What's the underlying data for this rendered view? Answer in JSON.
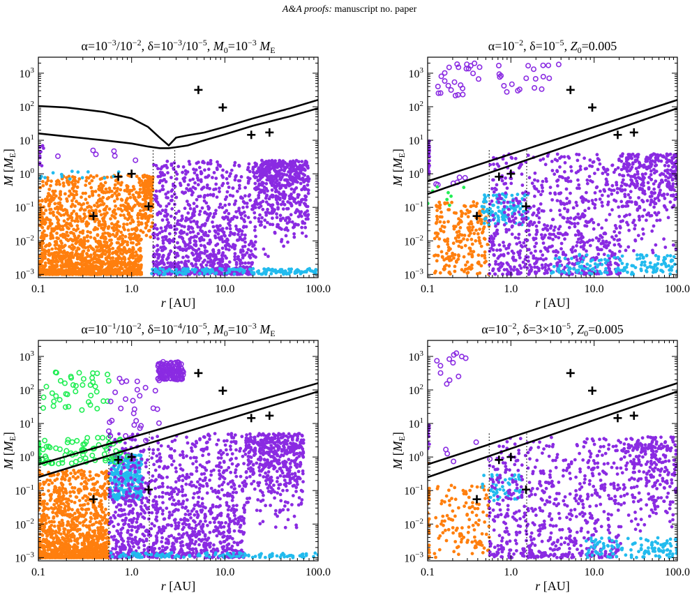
{
  "header": {
    "journal": "A&A proofs:",
    "rest": "manuscript no. paper"
  },
  "colors": {
    "orange": "#ff7f0e",
    "cyan": "#22bbee",
    "green": "#22ee55",
    "purple": "#8a2be2",
    "black": "#000000"
  },
  "chart_data": [
    {
      "type": "scatter",
      "panel": "top-left",
      "title_parts": [
        [
          "α=10",
          "n"
        ],
        [
          "−3",
          "sup"
        ],
        [
          "/10",
          "n"
        ],
        [
          "−2",
          "sup"
        ],
        [
          ", δ=10",
          "n"
        ],
        [
          "−3",
          "sup"
        ],
        [
          "/10",
          "n"
        ],
        [
          "−5",
          "sup"
        ],
        [
          ", ",
          "n"
        ],
        [
          "M",
          "i"
        ],
        [
          "0",
          "sub"
        ],
        [
          "=10",
          "n"
        ],
        [
          "−3",
          "sup"
        ],
        [
          " ",
          "n"
        ],
        [
          "M",
          "i"
        ],
        [
          "E",
          "sub"
        ]
      ],
      "xscale": "log",
      "yscale": "log",
      "xlim": [
        0.1,
        100
      ],
      "ylim": [
        0.0008,
        3000
      ],
      "xticks": [
        "0.1",
        "1.0",
        "10.0",
        "100.0"
      ],
      "yticks": [
        "10",
        "10",
        "10",
        "10",
        "10",
        "10",
        "10"
      ],
      "ytick_exponents": [
        "−3",
        "−2",
        "−1",
        "0",
        "1",
        "2",
        "3"
      ],
      "xlabel_main": "r",
      "xlabel_unit": " [AU]",
      "ylabel_main": "M",
      "ylabel_unit_base": "M",
      "ylabel_unit_sub": "E",
      "lines": [
        {
          "x": [
            0.1,
            0.2,
            0.5,
            1.0,
            1.5,
            2.0,
            2.5,
            3.0,
            4.0,
            6.0,
            10,
            20,
            50,
            100
          ],
          "y": [
            105,
            95,
            70,
            45,
            25,
            12,
            7,
            12,
            14,
            17,
            25,
            45,
            90,
            160
          ]
        },
        {
          "x": [
            0.1,
            0.2,
            0.5,
            1.0,
            1.5,
            2.0,
            2.5,
            3.0,
            4.0,
            6.0,
            10,
            20,
            50,
            100
          ],
          "y": [
            16,
            13,
            10,
            8,
            6.5,
            5.8,
            5.8,
            6.2,
            7,
            10,
            15,
            27,
            52,
            90
          ]
        }
      ],
      "dotted_x": [
        1.7,
        2.9
      ],
      "solar_system": {
        "x": [
          0.39,
          0.72,
          1.0,
          1.52,
          5.2,
          9.5,
          19.2,
          30.1
        ],
        "y": [
          0.055,
          0.82,
          1.0,
          0.107,
          318,
          95,
          14.5,
          17.1
        ]
      },
      "populations": [
        {
          "color": "orange",
          "filled": true,
          "n": 1700,
          "xr": [
            0.1,
            1.7
          ],
          "yr": [
            0.001,
            0.9
          ],
          "decay": 2.2,
          "edge": 0.1
        },
        {
          "color": "purple",
          "filled": true,
          "n": 1500,
          "xr": [
            1.7,
            80
          ],
          "yr": [
            0.001,
            2.5
          ],
          "decay": 1.8,
          "edge": 0.35
        },
        {
          "color": "cyan",
          "filled": true,
          "n": 160,
          "xr": [
            1.6,
            100
          ],
          "yr": [
            0.001,
            0.0015
          ],
          "decay": 1,
          "edge": 0
        },
        {
          "color": "purple",
          "filled": false,
          "n": 6,
          "xr": [
            0.1,
            1.6
          ],
          "yr": [
            1.0,
            5
          ],
          "decay": 0.3,
          "edge": 0
        },
        {
          "color": "purple",
          "filled": true,
          "n": 10,
          "xr": [
            0.1,
            0.12
          ],
          "yr": [
            1.0,
            10
          ],
          "decay": 1,
          "edge": 0
        },
        {
          "color": "cyan",
          "filled": true,
          "n": 14,
          "xr": [
            0.1,
            1.0
          ],
          "yr": [
            0.7,
            1.2
          ],
          "decay": 1,
          "edge": 0
        }
      ]
    },
    {
      "type": "scatter",
      "panel": "top-right",
      "title_parts": [
        [
          "α=10",
          "n"
        ],
        [
          "−2",
          "sup"
        ],
        [
          ", δ=10",
          "n"
        ],
        [
          "−5",
          "sup"
        ],
        [
          ", ",
          "n"
        ],
        [
          "Z",
          "i"
        ],
        [
          "0",
          "sub"
        ],
        [
          "=0.005",
          "n"
        ]
      ],
      "xscale": "log",
      "yscale": "log",
      "xlim": [
        0.1,
        100
      ],
      "ylim": [
        0.0008,
        3000
      ],
      "xticks": [
        "0.1",
        "1.0",
        "10.0",
        "100.0"
      ],
      "yticks": [
        "10",
        "10",
        "10",
        "10",
        "10",
        "10",
        "10"
      ],
      "ytick_exponents": [
        "−3",
        "−2",
        "−1",
        "0",
        "1",
        "2",
        "3"
      ],
      "xlabel_main": "r",
      "xlabel_unit": " [AU]",
      "ylabel_main": "M",
      "ylabel_unit_base": "M",
      "ylabel_unit_sub": "E",
      "lines": [
        {
          "x": [
            0.1,
            100
          ],
          "y": [
            0.6,
            160
          ]
        },
        {
          "x": [
            0.1,
            100
          ],
          "y": [
            0.25,
            90
          ]
        }
      ],
      "dotted_x": [
        0.55,
        1.55
      ],
      "solar_system": {
        "x": [
          0.39,
          0.72,
          1.0,
          1.52,
          5.2,
          9.5,
          19.2,
          30.1
        ],
        "y": [
          0.055,
          0.82,
          1.0,
          0.107,
          318,
          95,
          14.5,
          17.1
        ]
      },
      "populations": [
        {
          "color": "orange",
          "filled": true,
          "n": 220,
          "xr": [
            0.12,
            0.55
          ],
          "yr": [
            0.001,
            0.15
          ],
          "decay": 1,
          "edge": 0
        },
        {
          "color": "cyan",
          "filled": true,
          "n": 120,
          "xr": [
            0.45,
            1.7
          ],
          "yr": [
            0.03,
            0.25
          ],
          "decay": 1,
          "edge": 0
        },
        {
          "color": "purple",
          "filled": true,
          "n": 1100,
          "xr": [
            0.55,
            100
          ],
          "yr": [
            0.001,
            4
          ],
          "decay": 1.5,
          "edge": 0.3
        },
        {
          "color": "cyan",
          "filled": true,
          "n": 150,
          "xr": [
            3,
            100
          ],
          "yr": [
            0.001,
            0.004
          ],
          "decay": 1,
          "edge": 0
        },
        {
          "color": "purple",
          "filled": false,
          "n": 45,
          "xr": [
            0.12,
            4
          ],
          "yr": [
            200,
            2000
          ],
          "decay": 1,
          "edge": 0
        },
        {
          "color": "purple",
          "filled": true,
          "n": 30,
          "xr": [
            0.1,
            0.105
          ],
          "yr": [
            1,
            10
          ],
          "decay": 1,
          "edge": 0
        },
        {
          "color": "purple",
          "filled": false,
          "n": 6,
          "xr": [
            0.12,
            0.3
          ],
          "yr": [
            0.4,
            1
          ],
          "decay": 1,
          "edge": 0
        },
        {
          "color": "green",
          "filled": true,
          "n": 8,
          "xr": [
            0.1,
            0.3
          ],
          "yr": [
            0.1,
            0.8
          ],
          "decay": 1,
          "edge": 0
        }
      ]
    },
    {
      "type": "scatter",
      "panel": "bottom-left",
      "title_parts": [
        [
          "α=10",
          "n"
        ],
        [
          "−1",
          "sup"
        ],
        [
          "/10",
          "n"
        ],
        [
          "−2",
          "sup"
        ],
        [
          ", δ=10",
          "n"
        ],
        [
          "−4",
          "sup"
        ],
        [
          "/10",
          "n"
        ],
        [
          "−5",
          "sup"
        ],
        [
          ", ",
          "n"
        ],
        [
          "M",
          "i"
        ],
        [
          "0",
          "sub"
        ],
        [
          "=10",
          "n"
        ],
        [
          "−3",
          "sup"
        ],
        [
          " ",
          "n"
        ],
        [
          "M",
          "i"
        ],
        [
          "E",
          "sub"
        ]
      ],
      "xscale": "log",
      "yscale": "log",
      "xlim": [
        0.1,
        100
      ],
      "ylim": [
        0.0008,
        3000
      ],
      "xticks": [
        "0.1",
        "1.0",
        "10.0",
        "100.0"
      ],
      "yticks": [
        "10",
        "10",
        "10",
        "10",
        "10",
        "10",
        "10"
      ],
      "ytick_exponents": [
        "−3",
        "−2",
        "−1",
        "0",
        "1",
        "2",
        "3"
      ],
      "xlabel_main": "r",
      "xlabel_unit": " [AU]",
      "ylabel_main": "M",
      "ylabel_unit_base": "M",
      "ylabel_unit_sub": "E",
      "lines": [
        {
          "x": [
            0.1,
            100
          ],
          "y": [
            0.6,
            160
          ]
        },
        {
          "x": [
            0.1,
            100
          ],
          "y": [
            0.25,
            90
          ]
        }
      ],
      "dotted_x": [
        0.57,
        1.55
      ],
      "solar_system": {
        "x": [
          0.39,
          0.72,
          1.0,
          1.52,
          5.2,
          9.5,
          19.2,
          30.1
        ],
        "y": [
          0.055,
          0.82,
          1.0,
          0.107,
          318,
          95,
          14.5,
          17.1
        ]
      },
      "populations": [
        {
          "color": "orange",
          "filled": true,
          "n": 1200,
          "xr": [
            0.1,
            0.57
          ],
          "yr": [
            0.001,
            0.4
          ],
          "decay": 2.5,
          "edge": 0
        },
        {
          "color": "cyan",
          "filled": true,
          "n": 300,
          "xr": [
            0.57,
            1.3
          ],
          "yr": [
            0.05,
            1.2
          ],
          "decay": 1,
          "edge": 0
        },
        {
          "color": "purple",
          "filled": true,
          "n": 1600,
          "xr": [
            0.57,
            70
          ],
          "yr": [
            0.001,
            5
          ],
          "decay": 1.6,
          "edge": 0.3
        },
        {
          "color": "cyan",
          "filled": true,
          "n": 120,
          "xr": [
            0.6,
            100
          ],
          "yr": [
            0.001,
            0.0014
          ],
          "decay": 1,
          "edge": 0
        },
        {
          "color": "green",
          "filled": false,
          "n": 70,
          "xr": [
            0.1,
            0.9
          ],
          "yr": [
            0.6,
            4
          ],
          "decay": 1,
          "edge": 0
        },
        {
          "color": "green",
          "filled": false,
          "n": 40,
          "xr": [
            0.11,
            0.6
          ],
          "yr": [
            20,
            350
          ],
          "decay": 1,
          "edge": 0
        },
        {
          "color": "purple",
          "filled": false,
          "n": 120,
          "xr": [
            1.9,
            3.6
          ],
          "yr": [
            200,
            700
          ],
          "decay": 1,
          "edge": 0
        },
        {
          "color": "purple",
          "filled": false,
          "n": 30,
          "xr": [
            0.55,
            2.0
          ],
          "yr": [
            3,
            300
          ],
          "decay": 1,
          "edge": 0
        },
        {
          "color": "green",
          "filled": true,
          "n": 30,
          "xr": [
            0.1,
            0.105
          ],
          "yr": [
            0.6,
            3
          ],
          "decay": 1,
          "edge": 0
        },
        {
          "color": "orange",
          "filled": true,
          "n": 10,
          "xr": [
            0.1,
            0.105
          ],
          "yr": [
            0.05,
            0.4
          ],
          "decay": 1,
          "edge": 0
        }
      ]
    },
    {
      "type": "scatter",
      "panel": "bottom-right",
      "title_parts": [
        [
          "α=10",
          "n"
        ],
        [
          "−2",
          "sup"
        ],
        [
          ", δ=3×10",
          "n"
        ],
        [
          "−5",
          "sup"
        ],
        [
          ", ",
          "n"
        ],
        [
          "Z",
          "i"
        ],
        [
          "0",
          "sub"
        ],
        [
          "=0.005",
          "n"
        ]
      ],
      "xscale": "log",
      "yscale": "log",
      "xlim": [
        0.1,
        100
      ],
      "ylim": [
        0.0008,
        3000
      ],
      "xticks": [
        "0.1",
        "1.0",
        "10.0",
        "100.0"
      ],
      "yticks": [
        "10",
        "10",
        "10",
        "10",
        "10",
        "10",
        "10"
      ],
      "ytick_exponents": [
        "−3",
        "−2",
        "−1",
        "0",
        "1",
        "2",
        "3"
      ],
      "xlabel_main": "r",
      "xlabel_unit": " [AU]",
      "ylabel_main": "M",
      "ylabel_unit_base": "M",
      "ylabel_unit_sub": "E",
      "lines": [
        {
          "x": [
            0.1,
            100
          ],
          "y": [
            0.6,
            160
          ]
        },
        {
          "x": [
            0.1,
            100
          ],
          "y": [
            0.25,
            90
          ]
        }
      ],
      "dotted_x": [
        0.55,
        1.55
      ],
      "solar_system": {
        "x": [
          0.39,
          0.72,
          1.0,
          1.52,
          5.2,
          9.5,
          19.2,
          30.1
        ],
        "y": [
          0.055,
          0.82,
          1.0,
          0.107,
          318,
          95,
          14.5,
          17.1
        ]
      },
      "populations": [
        {
          "color": "orange",
          "filled": true,
          "n": 120,
          "xr": [
            0.12,
            0.55
          ],
          "yr": [
            0.001,
            0.15
          ],
          "decay": 1,
          "edge": 0
        },
        {
          "color": "cyan",
          "filled": true,
          "n": 50,
          "xr": [
            0.45,
            1.4
          ],
          "yr": [
            0.05,
            0.3
          ],
          "decay": 1,
          "edge": 0
        },
        {
          "color": "purple",
          "filled": true,
          "n": 900,
          "xr": [
            0.55,
            100
          ],
          "yr": [
            0.001,
            4
          ],
          "decay": 1.5,
          "edge": 0.3
        },
        {
          "color": "cyan",
          "filled": true,
          "n": 120,
          "xr": [
            8,
            100
          ],
          "yr": [
            0.001,
            0.004
          ],
          "decay": 1,
          "edge": 0
        },
        {
          "color": "purple",
          "filled": false,
          "n": 12,
          "xr": [
            0.1,
            0.3
          ],
          "yr": [
            150,
            1300
          ],
          "decay": 1,
          "edge": 0
        },
        {
          "color": "purple",
          "filled": false,
          "n": 5,
          "xr": [
            0.12,
            0.7
          ],
          "yr": [
            0.6,
            3
          ],
          "decay": 1,
          "edge": 0
        },
        {
          "color": "orange",
          "filled": true,
          "n": 25,
          "xr": [
            0.1,
            0.105
          ],
          "yr": [
            0.001,
            1
          ],
          "decay": 1,
          "edge": 0
        },
        {
          "color": "purple",
          "filled": true,
          "n": 10,
          "xr": [
            0.1,
            0.105
          ],
          "yr": [
            1,
            10
          ],
          "decay": 1,
          "edge": 0
        }
      ]
    }
  ]
}
